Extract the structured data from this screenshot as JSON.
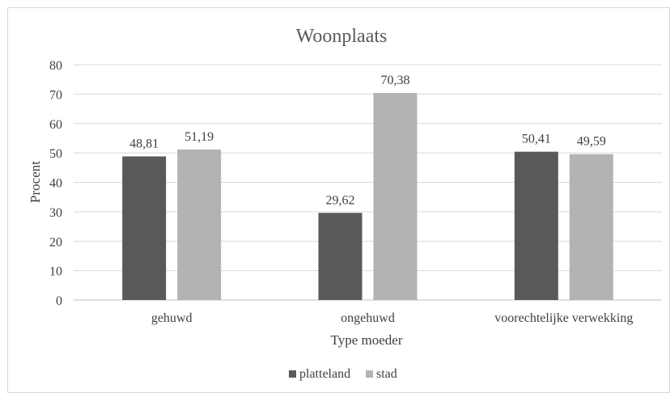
{
  "chart_data": {
    "type": "bar",
    "title": "Woonplaats",
    "xlabel": "Type moeder",
    "ylabel": "Procent",
    "categories": [
      "gehuwd",
      "ongehuwd",
      "voorechtelijke verwekking"
    ],
    "series": [
      {
        "name": "platteland",
        "values": [
          48.81,
          29.62,
          50.41
        ],
        "labels": [
          "48,81",
          "29,62",
          "50,41"
        ],
        "color": "#595959"
      },
      {
        "name": "stad",
        "values": [
          51.19,
          70.38,
          49.59
        ],
        "labels": [
          "51,19",
          "70,38",
          "49,59"
        ],
        "color": "#b3b3b3"
      }
    ],
    "ylim": [
      0,
      80
    ],
    "yticks": [
      "0",
      "10",
      "20",
      "30",
      "40",
      "50",
      "60",
      "70",
      "80"
    ],
    "grid": true,
    "legend": "bottom",
    "colors": {
      "gridline": "#d9d9d9",
      "axis": "#bfbfbf",
      "text": "#404040",
      "title": "#595959",
      "border": "#d9d9d9"
    }
  }
}
